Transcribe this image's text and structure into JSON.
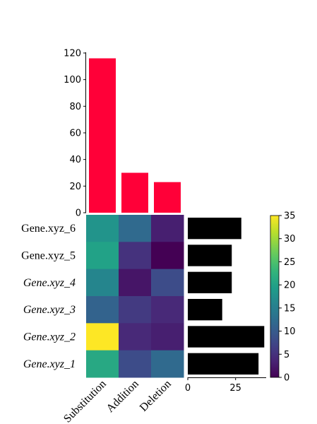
{
  "chart_data": [
    {
      "type": "bar",
      "title": "",
      "xlabel": "",
      "ylabel": "",
      "categories": [
        "Substitution",
        "Addition",
        "Deletion"
      ],
      "values": [
        116,
        30,
        23
      ],
      "ylim": [
        0,
        120
      ],
      "yticks": [
        "0",
        "20",
        "40",
        "60",
        "80",
        "100",
        "120"
      ],
      "color": "#ff0038",
      "grid": false
    },
    {
      "type": "heatmap",
      "title": "",
      "x_categories": [
        "Substitution",
        "Addition",
        "Deletion"
      ],
      "y_categories": [
        "Gene.xyz_6",
        "Gene.xyz_5",
        "Gene.xyz_4",
        "Gene.xyz_3",
        "Gene.xyz_2",
        "Gene.xyz_1"
      ],
      "italic_labels": [
        "Gene.xyz_4",
        "Gene.xyz_3",
        "Gene.xyz_2",
        "Gene.xyz_1"
      ],
      "values": [
        [
          18,
          12,
          3
        ],
        [
          20,
          5,
          0
        ],
        [
          16,
          2,
          8
        ],
        [
          11,
          6,
          4
        ],
        [
          35,
          4,
          3
        ],
        [
          21,
          8,
          12
        ]
      ],
      "colormap": "viridis",
      "vmin": 0,
      "vmax": 35,
      "colorbar_ticks": [
        "0",
        "5",
        "10",
        "15",
        "20",
        "25",
        "30",
        "35"
      ]
    },
    {
      "type": "bar",
      "orientation": "horizontal",
      "title": "",
      "categories": [
        "Gene.xyz_6",
        "Gene.xyz_5",
        "Gene.xyz_4",
        "Gene.xyz_3",
        "Gene.xyz_2",
        "Gene.xyz_1"
      ],
      "values": [
        28,
        23,
        23,
        18,
        40,
        37
      ],
      "xlim": [
        0,
        41
      ],
      "xticks": [
        "0",
        "25"
      ],
      "color": "#000000",
      "grid": false
    }
  ]
}
